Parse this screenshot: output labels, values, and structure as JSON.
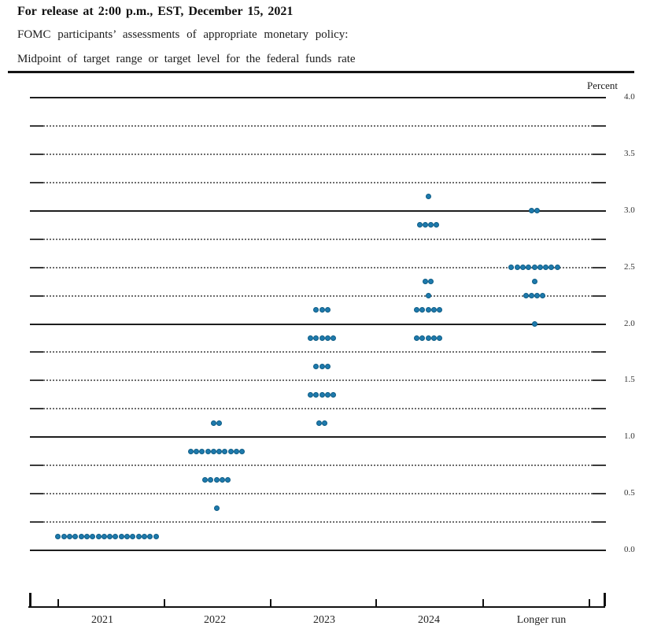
{
  "header": {
    "release_line": "For release at 2:00 p.m., EST, December 15, 2021",
    "subtitle1": "FOMC participants’ assessments of appropriate monetary policy:",
    "subtitle2": "Midpoint of target range or target level for the federal funds rate"
  },
  "chart_data": {
    "type": "scatter",
    "title": "FOMC participants’ assessments of appropriate monetary policy: Midpoint of target range or target level for the federal funds rate",
    "ylabel": "Percent",
    "ylim": [
      0.0,
      4.0
    ],
    "gridline_step": 0.25,
    "solid_gridlines": [
      0.0,
      1.0,
      2.0,
      3.0,
      4.0
    ],
    "y_ticks": [
      {
        "v": 4.0,
        "t": "4.0"
      },
      {
        "v": 3.5,
        "t": "3.5"
      },
      {
        "v": 3.0,
        "t": "3.0"
      },
      {
        "v": 2.5,
        "t": "2.5"
      },
      {
        "v": 2.0,
        "t": "2.0"
      },
      {
        "v": 1.5,
        "t": "1.5"
      },
      {
        "v": 1.0,
        "t": "1.0"
      },
      {
        "v": 0.5,
        "t": "0.5"
      },
      {
        "v": 0.0,
        "t": "0.0"
      }
    ],
    "categories": [
      "2021",
      "2022",
      "2023",
      "2024",
      "Longer run"
    ],
    "series": [
      {
        "name": "2021",
        "dots": [
          {
            "rate": 0.125,
            "count": 18
          }
        ]
      },
      {
        "name": "2022",
        "dots": [
          {
            "rate": 1.125,
            "count": 2
          },
          {
            "rate": 0.875,
            "count": 10
          },
          {
            "rate": 0.625,
            "count": 5
          },
          {
            "rate": 0.375,
            "count": 1
          }
        ]
      },
      {
        "name": "2023",
        "dots": [
          {
            "rate": 2.125,
            "count": 3
          },
          {
            "rate": 1.875,
            "count": 5
          },
          {
            "rate": 1.625,
            "count": 3
          },
          {
            "rate": 1.375,
            "count": 5
          },
          {
            "rate": 1.125,
            "count": 2
          }
        ]
      },
      {
        "name": "2024",
        "dots": [
          {
            "rate": 3.125,
            "count": 1
          },
          {
            "rate": 2.875,
            "count": 4
          },
          {
            "rate": 2.375,
            "count": 2
          },
          {
            "rate": 2.25,
            "count": 1
          },
          {
            "rate": 2.125,
            "count": 5
          },
          {
            "rate": 1.875,
            "count": 5
          }
        ]
      },
      {
        "name": "Longer run",
        "dots": [
          {
            "rate": 3.0,
            "count": 2
          },
          {
            "rate": 2.5,
            "count": 9
          },
          {
            "rate": 2.375,
            "count": 1
          },
          {
            "rate": 2.25,
            "count": 4
          },
          {
            "rate": 2.0,
            "count": 1
          }
        ]
      }
    ],
    "dot_color": "#1e7aad",
    "dot_border_color": "#0d5c85",
    "legend_position": "none",
    "grid": true
  }
}
